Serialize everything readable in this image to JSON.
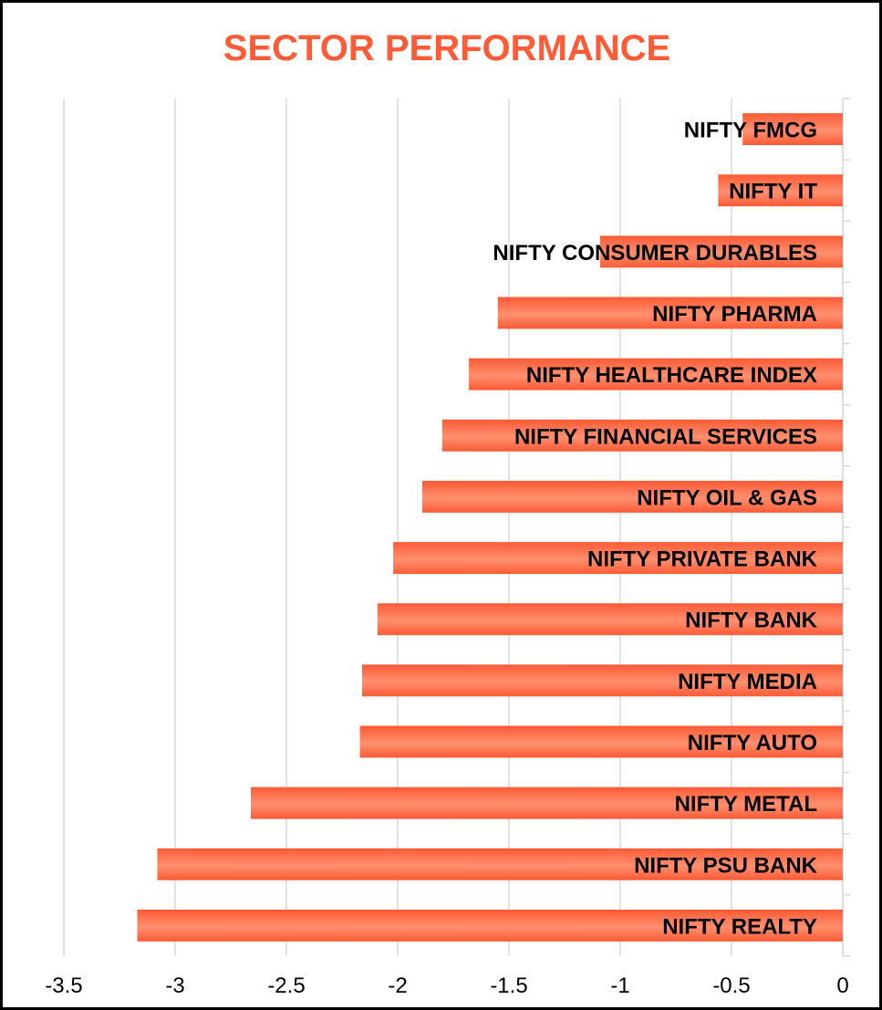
{
  "chart_data": {
    "type": "bar",
    "orientation": "horizontal",
    "title": "SECTOR PERFORMANCE",
    "xlabel": "",
    "ylabel": "",
    "xlim": [
      -3.5,
      0
    ],
    "x_ticks": [
      "-3.5",
      "-3",
      "-2.5",
      "-2",
      "-1.5",
      "-1",
      "-0.5",
      "0"
    ],
    "grid": true,
    "legend": "none",
    "categories": [
      "NIFTY FMCG",
      "NIFTY IT",
      "NIFTY CONSUMER DURABLES",
      "NIFTY PHARMA",
      "NIFTY HEALTHCARE INDEX",
      "NIFTY FINANCIAL SERVICES",
      "NIFTY OIL & GAS",
      "NIFTY PRIVATE BANK",
      "NIFTY BANK",
      "NIFTY MEDIA",
      "NIFTY AUTO",
      "NIFTY METAL",
      "NIFTY PSU BANK",
      "NIFTY REALTY"
    ],
    "values": [
      -0.45,
      -0.56,
      -1.09,
      -1.55,
      -1.68,
      -1.8,
      -1.89,
      -2.02,
      -2.09,
      -2.16,
      -2.17,
      -2.66,
      -3.08,
      -3.17
    ],
    "colors": {
      "bar_dark": "#fb5a34",
      "bar_light": "#ff9070",
      "title": "#ff5b36",
      "grid": "#d9d9d9",
      "label": "#000000"
    }
  }
}
